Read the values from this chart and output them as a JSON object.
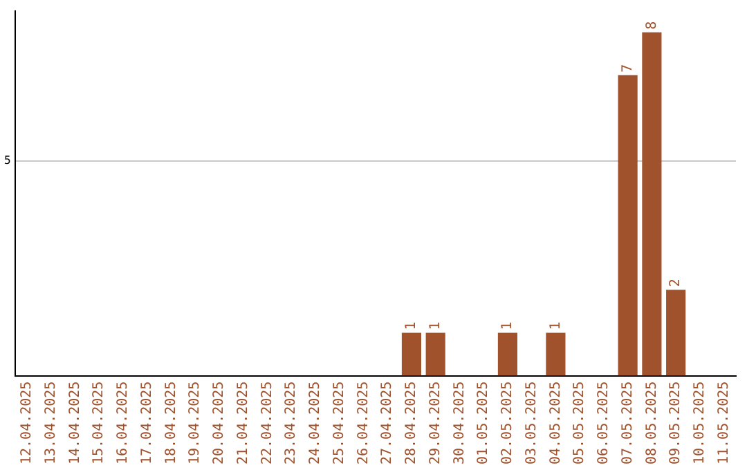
{
  "chart_data": {
    "type": "bar",
    "categories": [
      "12.04.2025",
      "13.04.2025",
      "14.04.2025",
      "15.04.2025",
      "16.04.2025",
      "17.04.2025",
      "18.04.2025",
      "19.04.2025",
      "20.04.2025",
      "21.04.2025",
      "22.04.2025",
      "23.04.2025",
      "24.04.2025",
      "25.04.2025",
      "26.04.2025",
      "27.04.2025",
      "28.04.2025",
      "29.04.2025",
      "30.04.2025",
      "01.05.2025",
      "02.05.2025",
      "03.05.2025",
      "04.05.2025",
      "05.05.2025",
      "06.05.2025",
      "07.05.2025",
      "08.05.2025",
      "09.05.2025",
      "10.05.2025",
      "11.05.2025"
    ],
    "values": [
      null,
      null,
      null,
      null,
      null,
      null,
      null,
      null,
      null,
      null,
      null,
      null,
      null,
      null,
      null,
      null,
      1,
      1,
      null,
      null,
      1,
      null,
      1,
      null,
      null,
      7,
      8,
      2,
      null,
      null
    ],
    "data_labels": true,
    "color": "#a0522d",
    "ylim": [
      0,
      8.5
    ],
    "yticks": [
      5
    ],
    "grid": "y",
    "legend": false
  }
}
